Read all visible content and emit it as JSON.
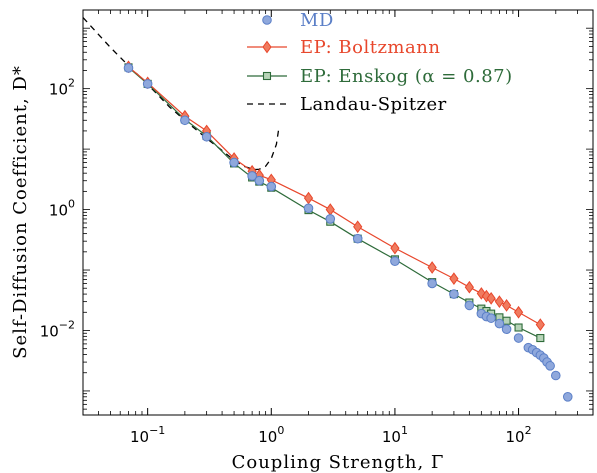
{
  "chart_data": {
    "type": "scatter",
    "xlabel": "Coupling Strength, Γ",
    "ylabel": "Self-Diffusion Coefficient, D*",
    "xscale": "log",
    "yscale": "log",
    "xlim": [
      0.03,
      400
    ],
    "ylim": [
      0.0004,
      2000
    ],
    "x_ticks": [
      {
        "value": 0.1,
        "base": "10",
        "exp": "−1"
      },
      {
        "value": 1,
        "base": "10",
        "exp": "0"
      },
      {
        "value": 10,
        "base": "10",
        "exp": "1"
      },
      {
        "value": 100,
        "base": "10",
        "exp": "2"
      }
    ],
    "y_ticks": [
      {
        "value": 0.01,
        "base": "10",
        "exp": "−2"
      },
      {
        "value": 1,
        "base": "10",
        "exp": "0"
      },
      {
        "value": 100,
        "base": "10",
        "exp": "2"
      }
    ],
    "legend_position": "top-right",
    "series": [
      {
        "name": "MD",
        "color": "#5b7fc7",
        "marker": "circle",
        "line": false,
        "x": [
          0.07,
          0.1,
          0.2,
          0.3,
          0.5,
          0.7,
          0.8,
          1.0,
          2.0,
          3.0,
          5.0,
          10.0,
          20.0,
          30.0,
          40.0,
          50.0,
          55.0,
          60.0,
          70.0,
          80.0,
          100.0,
          120.0,
          130.0,
          140.0,
          150.0,
          160.0,
          170.0,
          180.0,
          200.0,
          250.0
        ],
        "y": [
          220.0,
          120.0,
          30.0,
          16.0,
          6.0,
          3.6,
          3.0,
          2.4,
          1.05,
          0.7,
          0.33,
          0.14,
          0.06,
          0.04,
          0.026,
          0.019,
          0.017,
          0.016,
          0.013,
          0.0105,
          0.0075,
          0.0052,
          0.0048,
          0.0043,
          0.0039,
          0.0035,
          0.003,
          0.0026,
          0.0018,
          0.0008
        ]
      },
      {
        "name": "EP: Boltzmann",
        "color": "#e8472c",
        "marker": "diamond",
        "line": true,
        "x": [
          0.07,
          0.1,
          0.2,
          0.3,
          0.5,
          0.7,
          0.8,
          1.0,
          2.0,
          3.0,
          5.0,
          10.0,
          20.0,
          30.0,
          40.0,
          50.0,
          55.0,
          60.0,
          70.0,
          80.0,
          100.0,
          150.0
        ],
        "y": [
          230.0,
          125.0,
          35.0,
          20.0,
          7.0,
          4.3,
          3.7,
          3.1,
          1.55,
          1.0,
          0.52,
          0.23,
          0.11,
          0.072,
          0.052,
          0.041,
          0.037,
          0.034,
          0.03,
          0.026,
          0.02,
          0.0125
        ]
      },
      {
        "name": "EP: Enskog (α = 0.87)",
        "color": "#2e6b3a",
        "marker": "square",
        "line": true,
        "x": [
          0.07,
          0.1,
          0.2,
          0.3,
          0.5,
          0.7,
          0.8,
          1.0,
          2.0,
          3.0,
          5.0,
          10.0,
          20.0,
          30.0,
          40.0,
          50.0,
          55.0,
          60.0,
          70.0,
          80.0,
          100.0,
          150.0
        ],
        "y": [
          225.0,
          120.0,
          31.0,
          16.5,
          5.8,
          3.4,
          2.9,
          2.3,
          0.98,
          0.63,
          0.33,
          0.15,
          0.063,
          0.04,
          0.029,
          0.023,
          0.021,
          0.019,
          0.0165,
          0.0145,
          0.0112,
          0.0075
        ]
      },
      {
        "name": "Landau-Spitzer",
        "color": "#000000",
        "marker": "none",
        "line": true,
        "dashed": true,
        "x": [
          0.03,
          0.05,
          0.07,
          0.1,
          0.15,
          0.2,
          0.3,
          0.4,
          0.5,
          0.6,
          0.7,
          0.75,
          0.8,
          0.9,
          1.0,
          1.1,
          1.15
        ],
        "y": [
          1500.0,
          480.0,
          240.0,
          118.0,
          50.0,
          30.0,
          15.0,
          9.5,
          6.5,
          5.2,
          4.7,
          4.6,
          4.65,
          5.2,
          7.0,
          12.0,
          22.0
        ]
      }
    ]
  }
}
